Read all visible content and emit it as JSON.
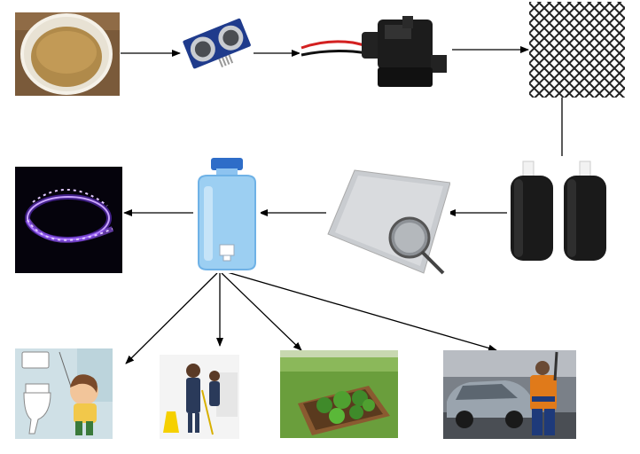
{
  "diagram": {
    "nodes": [
      {
        "id": "dirty-water-bucket",
        "depicts": "bucket-of-dirty-water-photo"
      },
      {
        "id": "ultrasonic-sensor",
        "depicts": "ultrasonic-sensor-module-photo"
      },
      {
        "id": "water-pump",
        "depicts": "submersible-pump-photo"
      },
      {
        "id": "mesh-filter",
        "depicts": "metal-mesh-screen-photo"
      },
      {
        "id": "carbon-filters",
        "depicts": "carbon-filter-cartridges-photo"
      },
      {
        "id": "fine-mesh-sieve",
        "depicts": "fine-mesh-sheet-and-sieve-photo"
      },
      {
        "id": "water-tank",
        "depicts": "water-dispenser-bottle-photo"
      },
      {
        "id": "uv-led-strip",
        "depicts": "uv-led-strip-photo"
      },
      {
        "id": "toilet-flushing",
        "depicts": "toilet-flush-cartoon"
      },
      {
        "id": "floor-cleaning",
        "depicts": "cleaning-staff-photo"
      },
      {
        "id": "garden-irrigation",
        "depicts": "vegetable-garden-photo"
      },
      {
        "id": "car-washing",
        "depicts": "car-wash-photo"
      }
    ],
    "edges": [
      {
        "from": "dirty-water-bucket",
        "to": "ultrasonic-sensor"
      },
      {
        "from": "ultrasonic-sensor",
        "to": "water-pump"
      },
      {
        "from": "water-pump",
        "to": "mesh-filter"
      },
      {
        "from": "mesh-filter",
        "to": "carbon-filters"
      },
      {
        "from": "carbon-filters",
        "to": "fine-mesh-sieve"
      },
      {
        "from": "fine-mesh-sieve",
        "to": "water-tank"
      },
      {
        "from": "water-tank",
        "to": "uv-led-strip"
      },
      {
        "from": "water-tank",
        "to": "toilet-flushing"
      },
      {
        "from": "water-tank",
        "to": "floor-cleaning"
      },
      {
        "from": "water-tank",
        "to": "garden-irrigation"
      },
      {
        "from": "water-tank",
        "to": "car-washing"
      }
    ]
  }
}
